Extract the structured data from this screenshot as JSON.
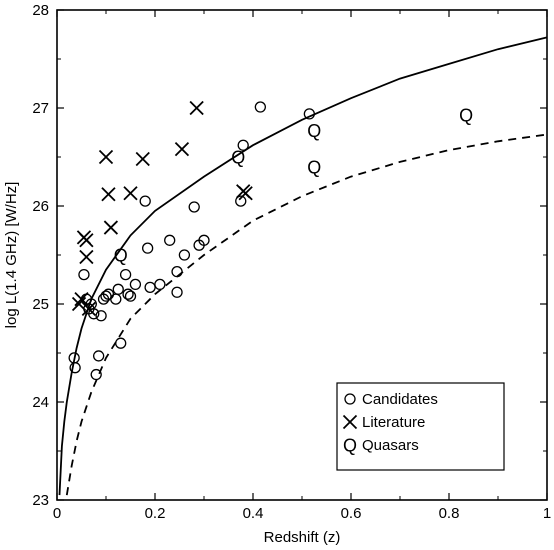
{
  "chart_data": {
    "type": "scatter",
    "xlabel": "Redshift (z)",
    "ylabel": "log L(1.4 GHz) [W/Hz]",
    "xlim": [
      0,
      1
    ],
    "ylim": [
      23,
      28
    ],
    "xticks": [
      0,
      0.2,
      0.4,
      0.6,
      0.8,
      1
    ],
    "xtick_labels": [
      "0",
      "0.2",
      "0.4",
      "0.6",
      "0.8",
      "1"
    ],
    "yticks": [
      23,
      24,
      25,
      26,
      27,
      28
    ],
    "ytick_labels": [
      "23",
      "24",
      "25",
      "26",
      "27",
      "28"
    ],
    "grid": false,
    "legend_position": "bottom-right",
    "series": [
      {
        "name": "Candidates",
        "marker": "circle",
        "points": [
          [
            0.035,
            24.45
          ],
          [
            0.037,
            24.35
          ],
          [
            0.055,
            25.3
          ],
          [
            0.06,
            25.05
          ],
          [
            0.065,
            24.95
          ],
          [
            0.07,
            25.0
          ],
          [
            0.075,
            24.9
          ],
          [
            0.08,
            24.28
          ],
          [
            0.085,
            24.47
          ],
          [
            0.09,
            24.88
          ],
          [
            0.095,
            25.05
          ],
          [
            0.1,
            25.08
          ],
          [
            0.105,
            25.1
          ],
          [
            0.12,
            25.05
          ],
          [
            0.125,
            25.15
          ],
          [
            0.13,
            24.6
          ],
          [
            0.14,
            25.3
          ],
          [
            0.145,
            25.1
          ],
          [
            0.15,
            25.08
          ],
          [
            0.16,
            25.2
          ],
          [
            0.18,
            26.05
          ],
          [
            0.185,
            25.57
          ],
          [
            0.19,
            25.17
          ],
          [
            0.21,
            25.2
          ],
          [
            0.23,
            25.65
          ],
          [
            0.245,
            25.33
          ],
          [
            0.245,
            25.12
          ],
          [
            0.26,
            25.5
          ],
          [
            0.28,
            25.99
          ],
          [
            0.29,
            25.6
          ],
          [
            0.3,
            25.65
          ],
          [
            0.375,
            26.05
          ],
          [
            0.38,
            26.62
          ],
          [
            0.415,
            27.01
          ],
          [
            0.515,
            26.94
          ]
        ]
      },
      {
        "name": "Literature",
        "marker": "cross",
        "points": [
          [
            0.045,
            25.0
          ],
          [
            0.05,
            25.05
          ],
          [
            0.055,
            25.68
          ],
          [
            0.06,
            25.65
          ],
          [
            0.06,
            25.48
          ],
          [
            0.065,
            24.95
          ],
          [
            0.1,
            26.5
          ],
          [
            0.105,
            26.12
          ],
          [
            0.11,
            25.78
          ],
          [
            0.15,
            26.13
          ],
          [
            0.175,
            26.48
          ],
          [
            0.255,
            26.58
          ],
          [
            0.285,
            27.0
          ],
          [
            0.38,
            26.15
          ],
          [
            0.385,
            26.13
          ]
        ]
      },
      {
        "name": "Quasars",
        "marker": "Q",
        "points": [
          [
            0.13,
            25.5
          ],
          [
            0.37,
            26.5
          ],
          [
            0.525,
            26.77
          ],
          [
            0.525,
            26.4
          ],
          [
            0.835,
            26.93
          ]
        ]
      }
    ],
    "curves": [
      {
        "style": "solid",
        "x": [
          0.005,
          0.01,
          0.015,
          0.02,
          0.03,
          0.04,
          0.05,
          0.07,
          0.1,
          0.15,
          0.2,
          0.3,
          0.4,
          0.5,
          0.6,
          0.7,
          0.8,
          0.9,
          1.0
        ],
        "y": [
          23.05,
          23.55,
          23.8,
          24.0,
          24.3,
          24.55,
          24.75,
          25.05,
          25.35,
          25.7,
          25.95,
          26.3,
          26.62,
          26.88,
          27.1,
          27.3,
          27.45,
          27.6,
          27.72
        ]
      },
      {
        "style": "dashed",
        "x": [
          0.02,
          0.03,
          0.04,
          0.05,
          0.07,
          0.1,
          0.15,
          0.2,
          0.3,
          0.4,
          0.5,
          0.6,
          0.7,
          0.8,
          0.9,
          1.0
        ],
        "y": [
          23.05,
          23.35,
          23.6,
          23.8,
          24.1,
          24.45,
          24.85,
          25.1,
          25.5,
          25.85,
          26.1,
          26.3,
          26.45,
          26.57,
          26.66,
          26.73
        ]
      }
    ]
  }
}
